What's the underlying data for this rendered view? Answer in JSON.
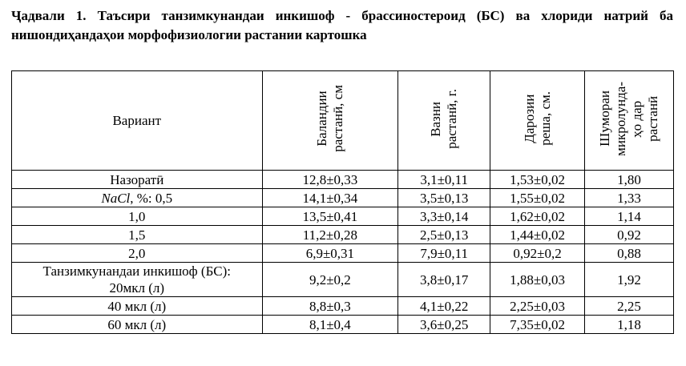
{
  "title": "Ҷадвали 1. Таъсири танзимкунандаи инкишоф - брассиностероид (БС) ва хлориди натрий ба нишондиҳандаҳои морфофизиологии растании картошка",
  "table": {
    "header": [
      [
        "Вариант"
      ],
      [
        "Баландии",
        "растанӣ, см"
      ],
      [
        "Вазни",
        "растанӣ, г."
      ],
      [
        "Дарозии",
        "реша, см."
      ],
      [
        "Шумораи",
        "микролунда-",
        "ҳо дар",
        "растанӣ"
      ]
    ],
    "rows": [
      [
        [
          "Назоратӣ"
        ],
        "12,8±0,33",
        "3,1±0,11",
        "1,53±0,02",
        "1,80"
      ],
      [
        [
          "NaCl",
          ", %: 0,5"
        ],
        "14,1±0,34",
        "3,5±0,13",
        "1,55±0,02",
        "1,33"
      ],
      [
        [
          "1,0"
        ],
        "13,5±0,41",
        "3,3±0,14",
        "1,62±0,02",
        "1,14"
      ],
      [
        [
          "1,5"
        ],
        "11,2±0,28",
        "2,5±0,13",
        "1,44±0,02",
        "0,92"
      ],
      [
        [
          "2,0"
        ],
        "6,9±0,31",
        "7,9±0,11",
        "0,92±0,2",
        "0,88"
      ],
      [
        [
          "Танзимкунандаи инкишоф (БС):",
          "20мкл (л)"
        ],
        "9,2±0,2",
        "3,8±0,17",
        "1,88±0,03",
        "1,92"
      ],
      [
        [
          "40 мкл (л)"
        ],
        "8,8±0,3",
        "4,1±0,22",
        "2,25±0,03",
        "2,25"
      ],
      [
        [
          "60 мкл (л)"
        ],
        "8,1±0,4",
        "3,6±0,25",
        "7,35±0,02",
        "1,18"
      ]
    ]
  }
}
